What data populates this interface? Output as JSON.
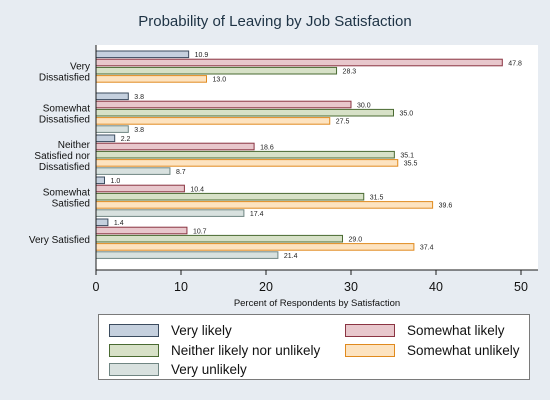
{
  "chart_data": {
    "type": "bar",
    "orientation": "horizontal",
    "title": "Probability of Leaving by Job Satisfaction",
    "xlabel": "Percent of Respondents by Satisfaction",
    "xlim": [
      0,
      52
    ],
    "xticks": [
      0,
      10,
      20,
      30,
      40,
      50
    ],
    "grid": false,
    "legend_position": "bottom",
    "categories": [
      [
        "Very",
        "Dissatisfied"
      ],
      [
        "Somewhat",
        "Dissatisfied"
      ],
      [
        "Neither",
        "Satisfied nor",
        "Dissatisfied"
      ],
      [
        "Somewhat",
        "Satisfied"
      ],
      [
        "Very Satisfied"
      ]
    ],
    "series": [
      {
        "name": "Very likely",
        "color": "#c5d0de",
        "stroke": "#3b4b5e",
        "values": [
          10.9,
          3.8,
          2.2,
          1.0,
          1.4
        ],
        "labels": [
          "10.9",
          "3.8",
          "2.2",
          "1.0",
          "1.4"
        ]
      },
      {
        "name": "Somewhat likely",
        "color": "#e8c7cc",
        "stroke": "#8a3442",
        "values": [
          47.8,
          30.0,
          18.6,
          10.4,
          10.7
        ],
        "labels": [
          "47.8",
          "30.0",
          "18.6",
          "10.4",
          "10.7"
        ]
      },
      {
        "name": "Neither likely nor unlikely",
        "color": "#d7e1c7",
        "stroke": "#4a6a32",
        "values": [
          28.3,
          35.0,
          35.1,
          31.5,
          29.0
        ],
        "labels": [
          "28.3",
          "35.0",
          "35.1",
          "31.5",
          "29.0"
        ]
      },
      {
        "name": "Somewhat unlikely",
        "color": "#fde3c0",
        "stroke": "#e08a1e",
        "values": [
          13.0,
          27.5,
          35.5,
          39.6,
          37.4
        ],
        "labels": [
          "13.0",
          "27.5",
          "35.5",
          "39.6",
          "37.4"
        ]
      },
      {
        "name": "Very unlikely",
        "color": "#d8e1df",
        "stroke": "#6f8582",
        "values": [
          null,
          3.8,
          8.7,
          17.4,
          21.4
        ],
        "labels": [
          "",
          "3.8",
          "8.7",
          "17.4",
          "21.4"
        ]
      }
    ]
  }
}
